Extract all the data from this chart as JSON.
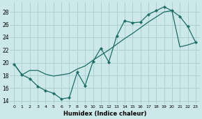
{
  "xlabel": "Humidex (Indice chaleur)",
  "ylabel": "",
  "bg_color": "#cce8e8",
  "grid_color": "#aacccc",
  "line_color": "#1a6e64",
  "xlim": [
    -0.5,
    23.5
  ],
  "ylim": [
    13.5,
    29.5
  ],
  "xticks": [
    0,
    1,
    2,
    3,
    4,
    5,
    6,
    7,
    8,
    9,
    10,
    11,
    12,
    13,
    14,
    15,
    16,
    17,
    18,
    19,
    20,
    21,
    22,
    23
  ],
  "yticks": [
    14,
    16,
    18,
    20,
    22,
    24,
    26,
    28
  ],
  "curve1_x": [
    0,
    1,
    2,
    3,
    4,
    5,
    6,
    7,
    8,
    9,
    10,
    11,
    12,
    13,
    14,
    15,
    16,
    17,
    18,
    19,
    20,
    21,
    22,
    23
  ],
  "curve1_y": [
    19.8,
    18.1,
    17.5,
    16.3,
    15.6,
    15.2,
    14.3,
    14.5,
    18.5,
    16.4,
    20.2,
    22.3,
    20.1,
    24.2,
    26.6,
    26.3,
    26.4,
    27.6,
    28.2,
    28.8,
    28.2,
    27.3,
    25.7,
    23.2
  ],
  "curve2_x": [
    0,
    1,
    2,
    3,
    4,
    5,
    6,
    7,
    8,
    9,
    10,
    11,
    12,
    13,
    14,
    15,
    16,
    17,
    18,
    19,
    20,
    21,
    22,
    23
  ],
  "curve2_y": [
    19.8,
    18.1,
    18.8,
    18.8,
    18.2,
    17.9,
    18.1,
    18.3,
    19.0,
    19.5,
    20.4,
    21.2,
    22.0,
    22.9,
    23.8,
    24.6,
    25.5,
    26.4,
    27.2,
    28.0,
    28.2,
    22.5,
    22.8,
    23.2
  ]
}
